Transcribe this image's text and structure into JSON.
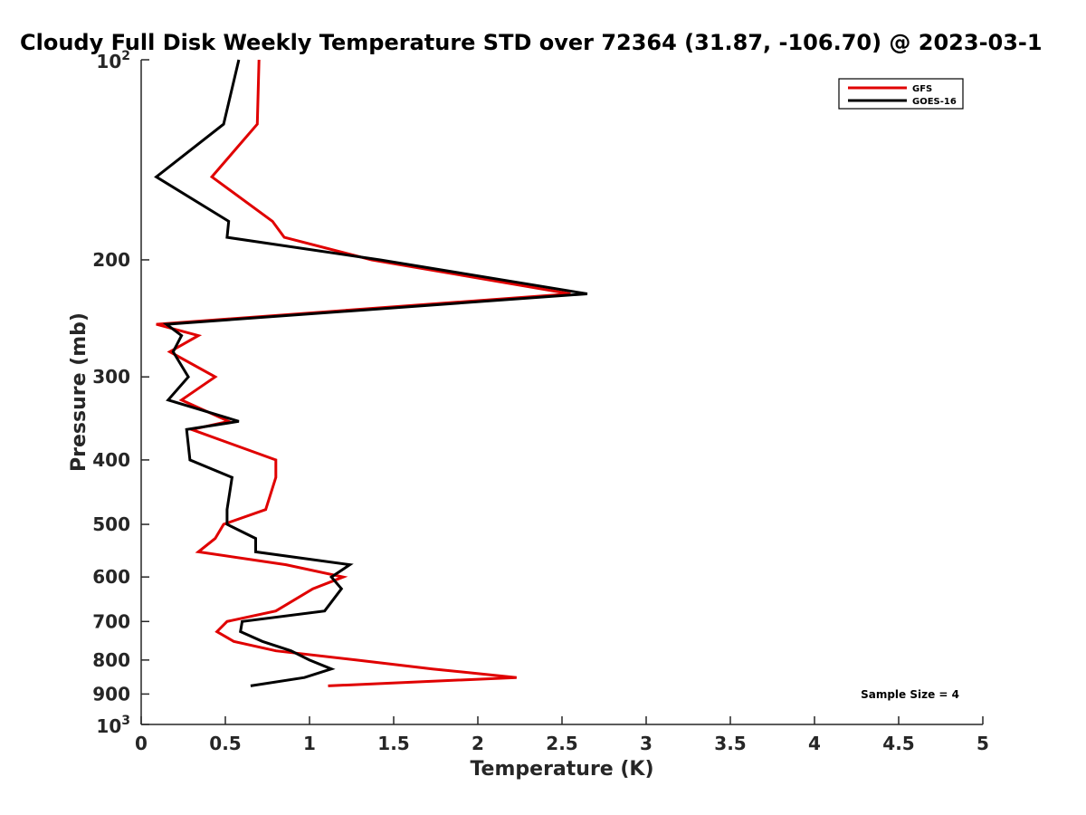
{
  "chart_data": {
    "type": "line",
    "title": "Cloudy Full Disk Weekly Temperature STD over 72364 (31.87, -106.70) @ 2023-03-1",
    "xlabel": "Temperature (K)",
    "ylabel": "Pressure (mb)",
    "xlim": [
      0,
      5
    ],
    "ylim": [
      100,
      1000
    ],
    "y_scale": "log",
    "y_reversed": true,
    "grid": false,
    "legend_position": "top-right",
    "x_ticks": [
      {
        "value": 0,
        "label": "0"
      },
      {
        "value": 0.5,
        "label": "0.5"
      },
      {
        "value": 1,
        "label": "1"
      },
      {
        "value": 1.5,
        "label": "1.5"
      },
      {
        "value": 2,
        "label": "2"
      },
      {
        "value": 2.5,
        "label": "2.5"
      },
      {
        "value": 3,
        "label": "3"
      },
      {
        "value": 3.5,
        "label": "3.5"
      },
      {
        "value": 4,
        "label": "4"
      },
      {
        "value": 4.5,
        "label": "4.5"
      },
      {
        "value": 5,
        "label": "5"
      }
    ],
    "y_ticks": [
      {
        "value": 200,
        "label": "200"
      },
      {
        "value": 300,
        "label": "300"
      },
      {
        "value": 400,
        "label": "400"
      },
      {
        "value": 500,
        "label": "500"
      },
      {
        "value": 600,
        "label": "600"
      },
      {
        "value": 700,
        "label": "700"
      },
      {
        "value": 800,
        "label": "800"
      },
      {
        "value": 900,
        "label": "900"
      }
    ],
    "y_power_ticks": [
      {
        "value": 100,
        "base": "10",
        "exp": "2"
      },
      {
        "value": 1000,
        "base": "10",
        "exp": "3"
      }
    ],
    "series": [
      {
        "name": "GFS",
        "color": "#e00000",
        "pressure": [
          100,
          125,
          150,
          175,
          185,
          200,
          225,
          250,
          260,
          275,
          300,
          325,
          350,
          360,
          400,
          425,
          475,
          500,
          525,
          550,
          575,
          600,
          625,
          675,
          700,
          725,
          750,
          775,
          800,
          825,
          850,
          875
        ],
        "values": [
          0.7,
          0.69,
          0.42,
          0.78,
          0.85,
          1.37,
          2.55,
          0.09,
          0.34,
          0.17,
          0.44,
          0.24,
          0.52,
          0.3,
          0.8,
          0.8,
          0.74,
          0.49,
          0.44,
          0.34,
          0.86,
          1.2,
          1.02,
          0.8,
          0.51,
          0.45,
          0.55,
          0.8,
          1.28,
          1.73,
          2.23,
          1.11
        ]
      },
      {
        "name": "GOES-16",
        "color": "#000000",
        "pressure": [
          100,
          125,
          150,
          175,
          185,
          200,
          225,
          250,
          260,
          275,
          300,
          325,
          350,
          360,
          400,
          425,
          475,
          500,
          525,
          550,
          575,
          600,
          625,
          675,
          700,
          725,
          750,
          775,
          800,
          825,
          850,
          875
        ],
        "values": [
          0.58,
          0.49,
          0.09,
          0.52,
          0.51,
          1.42,
          2.65,
          0.15,
          0.24,
          0.19,
          0.28,
          0.16,
          0.58,
          0.27,
          0.29,
          0.54,
          0.51,
          0.51,
          0.68,
          0.68,
          1.24,
          1.13,
          1.19,
          1.09,
          0.6,
          0.59,
          0.72,
          0.89,
          1.0,
          1.13,
          0.97,
          0.65
        ]
      }
    ],
    "annotation": "Sample Size = 4"
  }
}
